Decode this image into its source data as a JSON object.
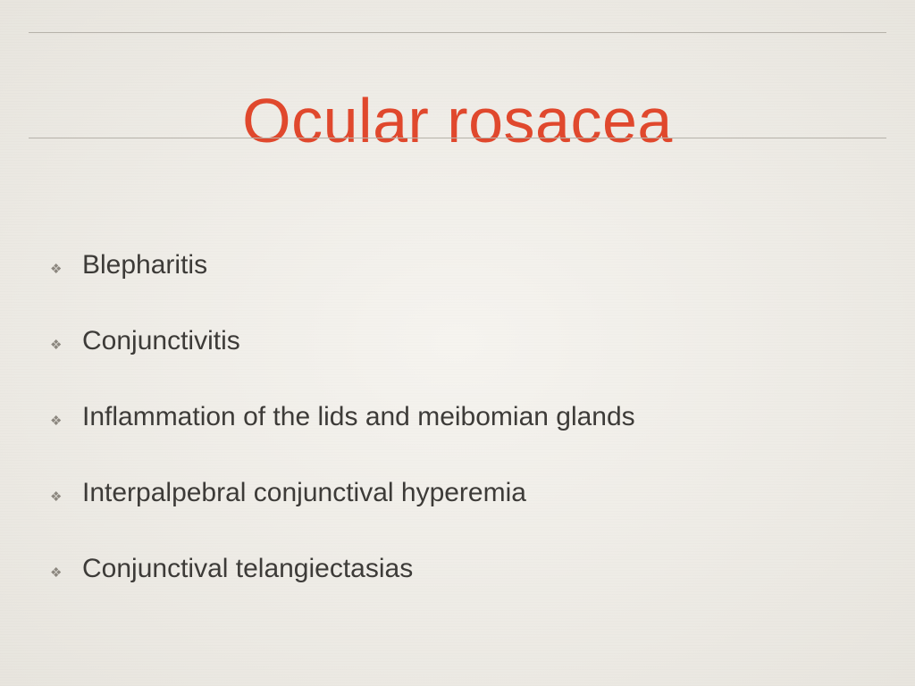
{
  "title": "Ocular rosacea",
  "title_color": "#e0482d",
  "title_fontsize": 70,
  "background_color": "#f1eee7",
  "rule_color": "#b6b2aa",
  "bullet_color": "#8c877f",
  "text_color": "#3d3b38",
  "bullet_glyph": "❖",
  "bullets": [
    {
      "text": "Blepharitis"
    },
    {
      "text": "Conjunctivitis"
    },
    {
      "text": "Inflammation of the lids and meibomian glands"
    },
    {
      "text": "Interpalpebral conjunctival hyperemia"
    },
    {
      "text": "Conjunctival telangiectasias"
    }
  ]
}
